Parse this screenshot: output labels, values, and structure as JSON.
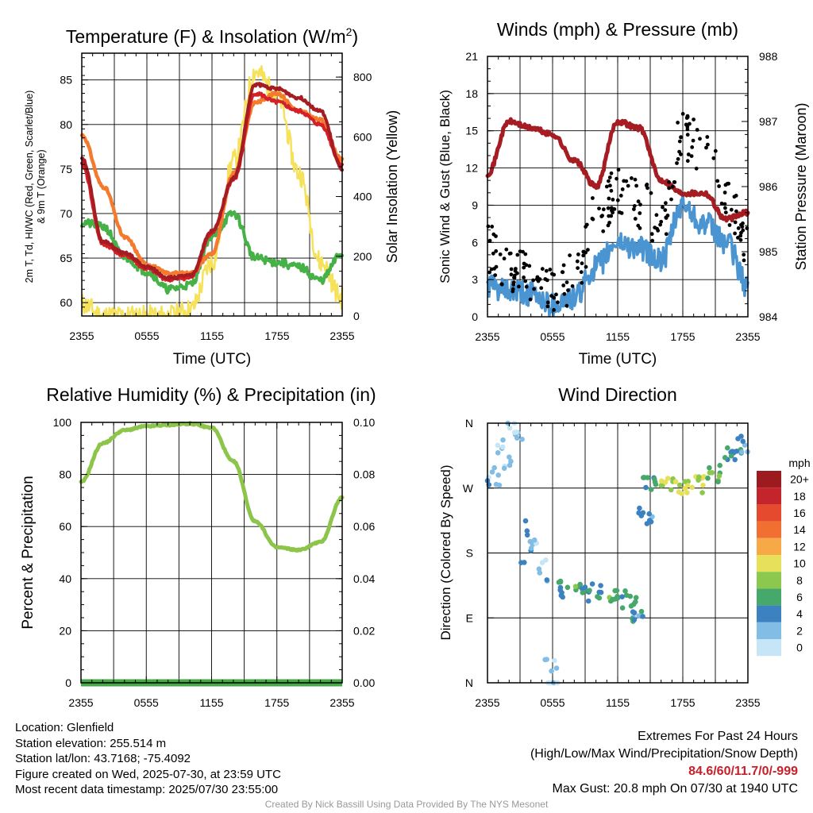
{
  "time_ticks": [
    "2355",
    "0555",
    "1155",
    "1755",
    "2355"
  ],
  "temp_panel": {
    "title": "Temperature (F) & Insolation (W/m²)",
    "title_main": "Temperature (F) & Insolation (W/m",
    "title_sup": "2",
    "title_end": ")",
    "ylabel_left_line1": "2m T, Td, HI/WC (Red, Green, Scarlet/Blue)",
    "ylabel_left_line2": "& 9m T (Orange)",
    "ylabel_right": "Solar Insolation (Yellow)",
    "xlabel": "Time (UTC)"
  },
  "wind_panel": {
    "title": "Winds (mph) & Pressure (mb)",
    "ylabel_left": "Sonic Wind & Gust (Blue, Black)",
    "ylabel_right": "Station Pressure (Maroon)",
    "xlabel": "Time (UTC)"
  },
  "rh_panel": {
    "title": "Relative Humidity (%) & Precipitation (in)",
    "ylabel_left": "Percent & Precipitation"
  },
  "dir_panel": {
    "title": "Wind Direction",
    "ylabel_left": "Direction (Colored By Speed)",
    "colorbar_title": "mph"
  },
  "colors": {
    "temp": "#a51c22",
    "heat_index": "#d62028",
    "temp9m": "#f47a2e",
    "dewpoint": "#46b146",
    "insolation": "#f5e25a",
    "wind": "#4a94d1",
    "gust": "#000000",
    "pressure": "#a51c22",
    "rh": "#8dc54a",
    "precip": "#46a846"
  },
  "colorbar": [
    {
      "label": "20+",
      "color": "#9b1b1e"
    },
    {
      "label": "18",
      "color": "#c4242b"
    },
    {
      "label": "16",
      "color": "#e64a2e"
    },
    {
      "label": "14",
      "color": "#f26f32"
    },
    {
      "label": "12",
      "color": "#f7a947"
    },
    {
      "label": "10",
      "color": "#e6e05a"
    },
    {
      "label": "8",
      "color": "#8cc84d"
    },
    {
      "label": "6",
      "color": "#46a86a"
    },
    {
      "label": "4",
      "color": "#3c82c0"
    },
    {
      "label": "2",
      "color": "#82bde6"
    },
    {
      "label": "0",
      "color": "#c6e6f8"
    }
  ],
  "info": {
    "location": "Location: Glenfield",
    "elevation": "Station elevation: 255.514 m",
    "latlon": "Station lat/lon: 43.7168; -75.4092",
    "created": "Figure created on Wed, 2025-07-30, at 23:59 UTC",
    "recent": "Most recent data timestamp: 2025/07/30 23:55:00"
  },
  "extremes": {
    "title": "Extremes For Past 24 Hours",
    "subtitle": "(High/Low/Max Wind/Precipitation/Snow Depth)",
    "values": "84.6/60/11.7/0/-999",
    "max_gust": "Max Gust: 20.8 mph On 07/30 at 1940 UTC"
  },
  "credit": "Created By Nick Bassill Using Data Provided By The NYS Mesonet",
  "chart_data": [
    {
      "type": "line",
      "title": "Temperature (F) & Insolation (W/m2)",
      "xlabel": "Time (UTC)",
      "ylabel": "2m T, Td, HI/WC (Red, Green, Scarlet/Blue) & 9m T (Orange)",
      "ylabel_right": "Solar Insolation (Yellow)",
      "x": [
        "2355",
        "0155",
        "0355",
        "0555",
        "0755",
        "0955",
        "1155",
        "1355",
        "1555",
        "1755",
        "1955",
        "2155",
        "2355"
      ],
      "ylim": [
        58.5,
        88
      ],
      "ylim_right": [
        0,
        880
      ],
      "yticks": [
        60,
        65,
        70,
        75,
        80,
        85
      ],
      "yticks_right": [
        0,
        200,
        400,
        600,
        800
      ],
      "grid": true,
      "series": [
        {
          "name": "2m T",
          "values": [
            76.3,
            66.8,
            65.5,
            64.0,
            62.8,
            63.0,
            68.0,
            74.0,
            84.5,
            84.0,
            83.0,
            81.5,
            75.0
          ]
        },
        {
          "name": "HI/WC",
          "values": [
            75.5,
            66.5,
            65.3,
            63.8,
            62.6,
            62.8,
            67.8,
            73.8,
            83.5,
            82.5,
            81.5,
            80.0,
            75.5
          ]
        },
        {
          "name": "9m T",
          "values": [
            78.8,
            73.0,
            67.3,
            64.3,
            63.3,
            63.3,
            65.5,
            74.5,
            82.5,
            83.5,
            81.5,
            80.5,
            76.0
          ]
        },
        {
          "name": "Td",
          "values": [
            69.0,
            68.5,
            65.0,
            63.5,
            61.5,
            62.0,
            67.5,
            70.0,
            65.0,
            64.5,
            64.0,
            62.5,
            65.5
          ]
        },
        {
          "name": "Insolation",
          "axis": "right",
          "values": [
            40,
            0,
            0,
            0,
            0,
            20,
            180,
            520,
            820,
            740,
            480,
            180,
            60
          ]
        }
      ]
    },
    {
      "type": "line",
      "title": "Winds (mph) & Pressure (mb)",
      "xlabel": "Time (UTC)",
      "ylabel": "Sonic Wind & Gust (Blue, Black)",
      "ylabel_right": "Station Pressure (Maroon)",
      "x": [
        "2355",
        "0155",
        "0355",
        "0555",
        "0755",
        "0955",
        "1155",
        "1355",
        "1555",
        "1755",
        "1955",
        "2155",
        "2355"
      ],
      "ylim": [
        0,
        21
      ],
      "ylim_right": [
        984,
        988
      ],
      "yticks": [
        0,
        3,
        6,
        9,
        12,
        15,
        18,
        21
      ],
      "yticks_right": [
        984,
        985,
        986,
        987,
        988
      ],
      "grid": true,
      "series": [
        {
          "name": "Sonic Wind",
          "values": [
            2.5,
            2.0,
            1.8,
            1.0,
            1.5,
            4.0,
            6.0,
            5.5,
            4.5,
            9.0,
            7.5,
            6.0,
            2.5
          ]
        },
        {
          "name": "Gust",
          "values": [
            5.0,
            3.0,
            2.5,
            1.5,
            2.5,
            7.5,
            9.5,
            8.5,
            7.0,
            14.0,
            13.0,
            9.0,
            5.0
          ]
        },
        {
          "name": "Station Pressure",
          "axis": "right",
          "values": [
            986.2,
            987.0,
            986.9,
            986.8,
            986.4,
            986.0,
            987.0,
            986.9,
            986.1,
            985.9,
            985.9,
            985.5,
            985.6
          ]
        }
      ]
    },
    {
      "type": "line",
      "title": "Relative Humidity (%) & Precipitation (in)",
      "ylabel": "Percent & Precipitation",
      "x": [
        "2355",
        "0155",
        "0355",
        "0555",
        "0755",
        "0955",
        "1155",
        "1355",
        "1555",
        "1755",
        "1955",
        "2155",
        "2355"
      ],
      "ylim": [
        0,
        100
      ],
      "ylim_right": [
        0,
        0.1
      ],
      "yticks": [
        0,
        20,
        40,
        60,
        80,
        100
      ],
      "yticks_right": [
        0.0,
        0.02,
        0.04,
        0.06,
        0.08,
        0.1
      ],
      "grid": true,
      "series": [
        {
          "name": "RH",
          "values": [
            77,
            92,
            97,
            98.5,
            99,
            99.5,
            98,
            85,
            62,
            52,
            51,
            54,
            71
          ]
        },
        {
          "name": "Precipitation",
          "axis": "right",
          "values": [
            0,
            0,
            0,
            0,
            0,
            0,
            0,
            0,
            0,
            0,
            0,
            0,
            0
          ]
        }
      ]
    },
    {
      "type": "scatter",
      "title": "Wind Direction",
      "ylabel": "Direction (Colored By Speed)",
      "x": [
        "2355",
        "0555",
        "1155",
        "1755",
        "2355"
      ],
      "yticks": [
        "N",
        "E",
        "S",
        "W",
        "N"
      ],
      "ylim": [
        0,
        360
      ],
      "colorbar_title": "mph",
      "colorbar_ticks": [
        "0",
        "2",
        "4",
        "6",
        "8",
        "10",
        "12",
        "14",
        "16",
        "18",
        "20+"
      ],
      "grid": true,
      "points": [
        {
          "hour": 0.5,
          "dir": 300,
          "speed": 2
        },
        {
          "hour": 1.5,
          "dir": 330,
          "speed": 1
        },
        {
          "hour": 2.5,
          "dir": 340,
          "speed": 2
        },
        {
          "hour": 3.5,
          "dir": 200,
          "speed": 3
        },
        {
          "hour": 5.0,
          "dir": 170,
          "speed": 2
        },
        {
          "hour": 6.0,
          "dir": 0,
          "speed": 1
        },
        {
          "hour": 7.0,
          "dir": 130,
          "speed": 5
        },
        {
          "hour": 8.5,
          "dir": 130,
          "speed": 6
        },
        {
          "hour": 10.0,
          "dir": 125,
          "speed": 5
        },
        {
          "hour": 11.5,
          "dir": 120,
          "speed": 6
        },
        {
          "hour": 13.0,
          "dir": 115,
          "speed": 6
        },
        {
          "hour": 14.0,
          "dir": 95,
          "speed": 4
        },
        {
          "hour": 14.5,
          "dir": 230,
          "speed": 4
        },
        {
          "hour": 15.0,
          "dir": 280,
          "speed": 6
        },
        {
          "hour": 16.5,
          "dir": 275,
          "speed": 9
        },
        {
          "hour": 18.0,
          "dir": 270,
          "speed": 10
        },
        {
          "hour": 19.5,
          "dir": 275,
          "speed": 9
        },
        {
          "hour": 21.0,
          "dir": 290,
          "speed": 7
        },
        {
          "hour": 22.5,
          "dir": 315,
          "speed": 5
        },
        {
          "hour": 23.5,
          "dir": 330,
          "speed": 4
        }
      ]
    }
  ]
}
